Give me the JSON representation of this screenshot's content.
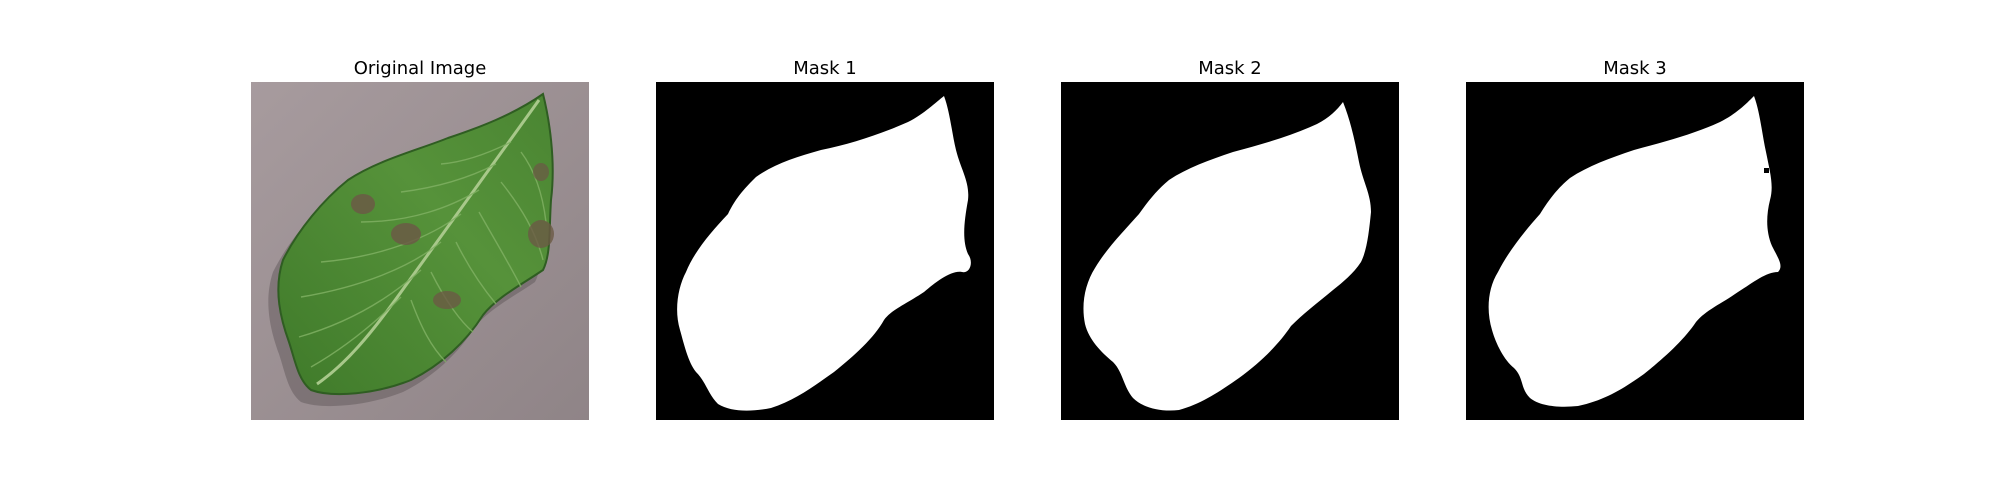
{
  "figure": {
    "panels": [
      {
        "title": "Original Image"
      },
      {
        "title": "Mask 1"
      },
      {
        "title": "Mask 2"
      },
      {
        "title": "Mask 3"
      }
    ]
  },
  "colors": {
    "background": "#ffffff",
    "mask_background": "#000000",
    "mask_foreground": "#ffffff",
    "surface": "#9c9093",
    "leaf": "#4f8a34",
    "leaf_dark": "#2f5d22",
    "lesion": "#6b5a45"
  }
}
